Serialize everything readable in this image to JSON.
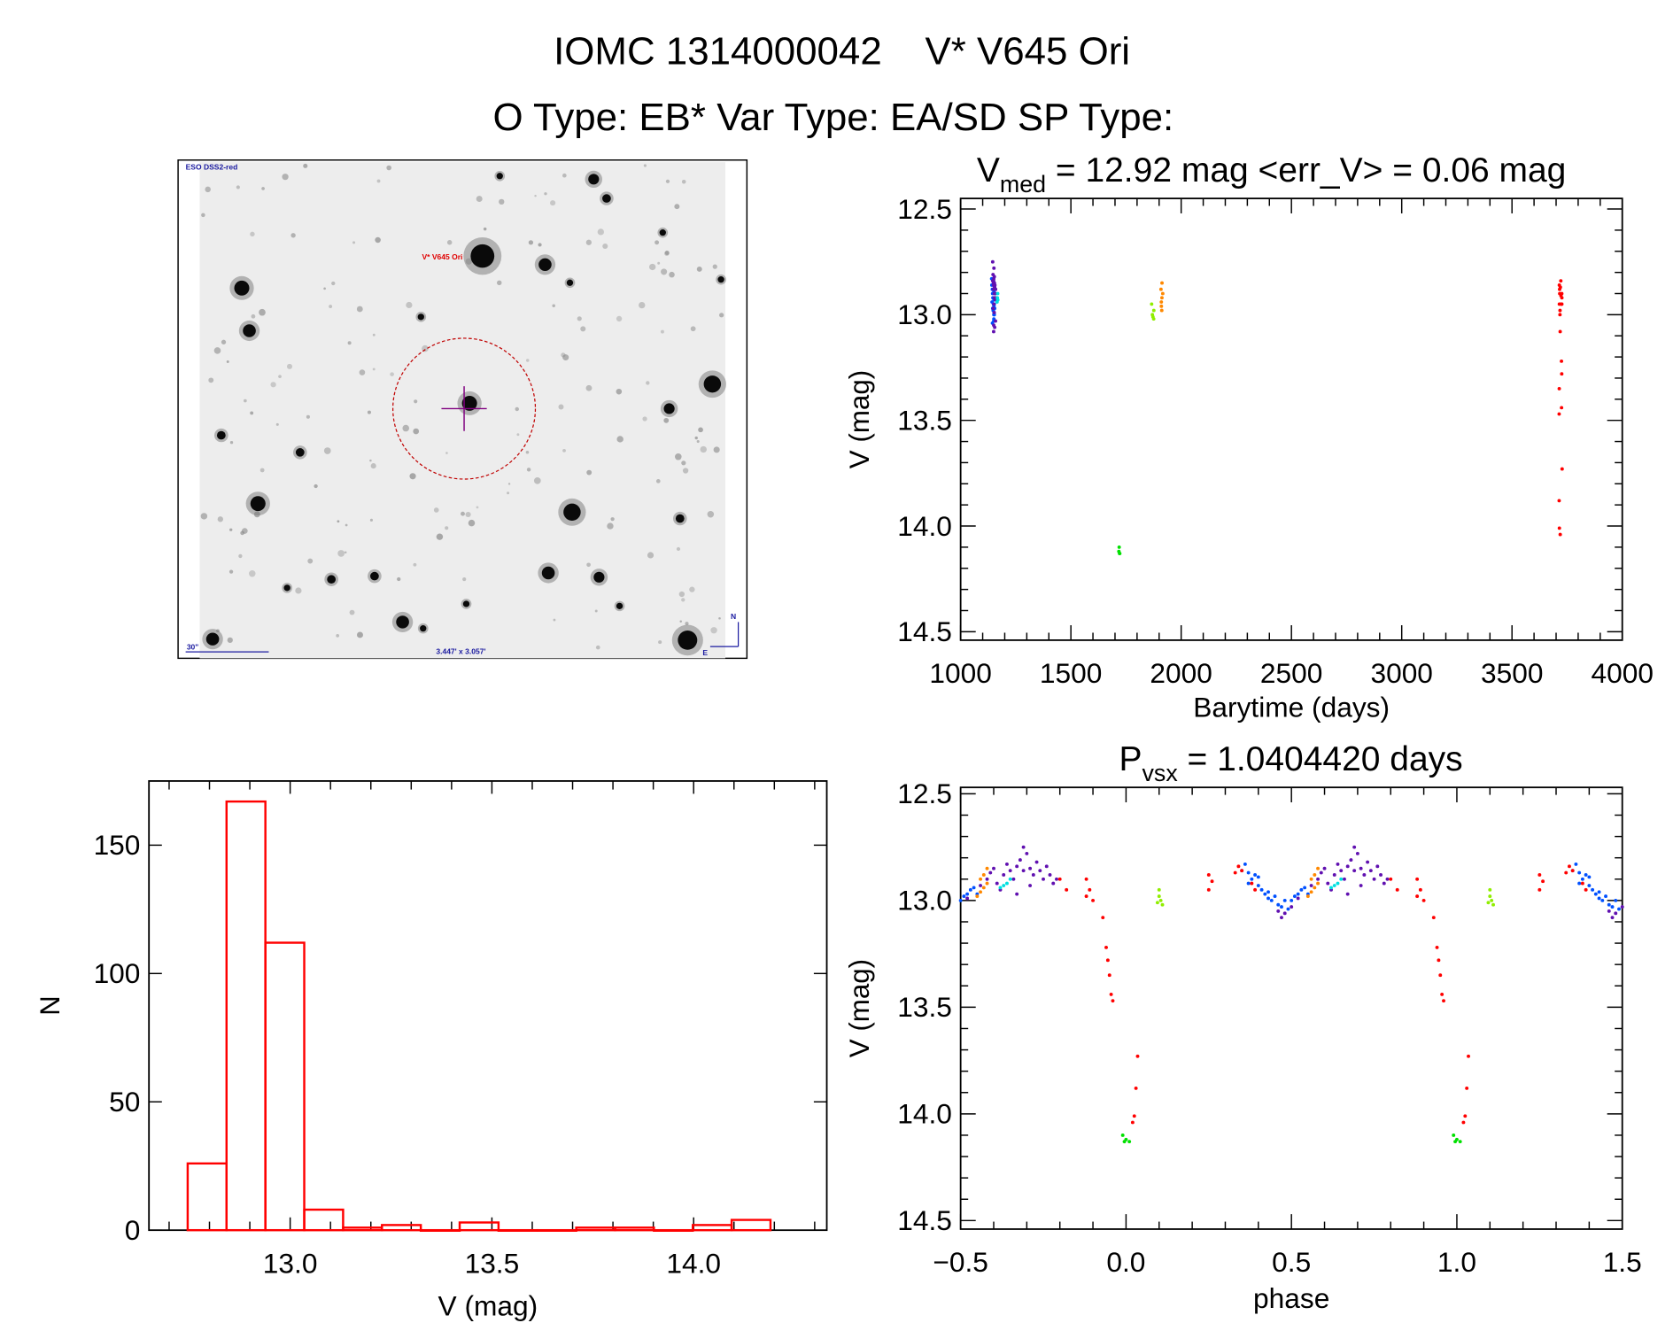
{
  "title": {
    "line1": "IOMC 1314000042    V* V645 Ori",
    "line2": "O Type: EB*  Var Type: EA/SD  SP Type:"
  },
  "finder_image": {
    "survey_label": "ESO DSS2-red",
    "target_label": "V* V645 Ori",
    "scale_label": "30\"",
    "fov_label": "3.447' x 3.057'",
    "north_label": "N",
    "east_label": "E",
    "marker_color": "#c00000",
    "crosshair_color": "#800080"
  },
  "chart_data": [
    {
      "id": "lightcurve",
      "type": "scatter",
      "title": {
        "main": "V",
        "sub": "med",
        "rest": " = 12.92 mag <err_V> = 0.06 mag"
      },
      "xlabel": "Barytime (days)",
      "ylabel": "V (mag)",
      "xlim": [
        1000,
        4000
      ],
      "ylim": [
        14.5,
        12.5
      ],
      "y_inverted": true,
      "xticks": [
        "1000",
        "1500",
        "2000",
        "2500",
        "3000",
        "3500",
        "4000"
      ],
      "yticks": [
        "12.5",
        "13.0",
        "13.5",
        "14.0",
        "14.5"
      ],
      "note": "points plotted from the observation groups below at each group's epoch"
    },
    {
      "id": "histogram",
      "type": "bar",
      "xlabel": "V (mag)",
      "ylabel": "N",
      "xlim": [
        12.65,
        14.33
      ],
      "ylim": [
        0,
        175
      ],
      "xticks": [
        "13.0",
        "13.5",
        "14.0"
      ],
      "yticks": [
        "0",
        "50",
        "100",
        "150"
      ],
      "bin_start": 12.746,
      "bin_width": 0.0963,
      "counts": [
        26,
        167,
        112,
        8,
        1,
        2,
        0,
        3,
        0,
        0,
        1,
        1,
        0,
        2,
        4
      ],
      "color": "#ff0000"
    },
    {
      "id": "phased",
      "type": "scatter",
      "title": {
        "main": "P",
        "sub": "vsx",
        "rest": " = 1.0404420 days"
      },
      "xlabel": "phase",
      "ylabel": "V (mag)",
      "xlim": [
        -0.5,
        1.5
      ],
      "ylim": [
        14.5,
        12.5
      ],
      "y_inverted": true,
      "xticks": [
        "−0.5",
        "0.0",
        "0.5",
        "1.0",
        "1.5"
      ],
      "yticks": [
        "12.5",
        "13.0",
        "13.5",
        "14.0",
        "14.5"
      ],
      "phase_repeated": true
    }
  ],
  "observation_groups": [
    {
      "color": "#0050ff",
      "time_days": 1148,
      "points": [
        [
          0.36,
          12.83
        ],
        [
          0.37,
          12.87
        ],
        [
          0.38,
          12.9
        ],
        [
          0.39,
          12.88
        ],
        [
          0.4,
          12.93
        ],
        [
          0.41,
          12.95
        ],
        [
          0.42,
          12.97
        ],
        [
          0.43,
          12.99
        ],
        [
          0.44,
          13.0
        ],
        [
          0.45,
          12.98
        ],
        [
          0.46,
          13.02
        ],
        [
          0.47,
          13.03
        ],
        [
          0.48,
          13.0
        ],
        [
          0.49,
          13.04
        ],
        [
          0.37,
          12.92
        ],
        [
          0.4,
          12.89
        ],
        [
          0.43,
          12.96
        ],
        [
          0.35,
          12.86
        ],
        [
          -0.5,
          13.0
        ],
        [
          -0.49,
          12.98
        ],
        [
          -0.48,
          12.97
        ],
        [
          -0.47,
          12.95
        ],
        [
          -0.46,
          12.94
        ],
        [
          -0.45,
          12.97
        ]
      ]
    },
    {
      "color": "#6010b0",
      "time_days": 1152,
      "points": [
        [
          -0.44,
          12.93
        ],
        [
          -0.42,
          12.9
        ],
        [
          -0.41,
          12.87
        ],
        [
          -0.4,
          12.85
        ],
        [
          -0.39,
          12.92
        ],
        [
          -0.37,
          12.88
        ],
        [
          -0.36,
          12.83
        ],
        [
          -0.35,
          12.86
        ],
        [
          -0.34,
          12.9
        ],
        [
          -0.33,
          12.84
        ],
        [
          -0.32,
          12.81
        ],
        [
          -0.31,
          12.86
        ],
        [
          -0.3,
          12.78
        ],
        [
          -0.29,
          12.85
        ],
        [
          -0.28,
          12.88
        ],
        [
          -0.27,
          12.82
        ],
        [
          -0.26,
          12.86
        ],
        [
          -0.25,
          12.9
        ],
        [
          -0.24,
          12.84
        ],
        [
          -0.23,
          12.88
        ],
        [
          -0.22,
          12.92
        ],
        [
          -0.21,
          12.9
        ],
        [
          -0.38,
          12.95
        ],
        [
          -0.33,
          12.97
        ],
        [
          -0.29,
          12.93
        ],
        [
          -0.31,
          12.75
        ],
        [
          0.46,
          13.05
        ],
        [
          0.47,
          13.08
        ],
        [
          0.48,
          13.06
        ],
        [
          0.5,
          13.03
        ],
        [
          -0.48,
          12.99
        ]
      ]
    },
    {
      "color": "#00e0e0",
      "time_days": 1170,
      "points": [
        [
          -0.38,
          12.94
        ],
        [
          -0.37,
          12.93
        ],
        [
          -0.36,
          12.92
        ],
        [
          -0.35,
          12.9
        ]
      ]
    },
    {
      "color": "#00e000",
      "time_days": 1720,
      "points": [
        [
          -0.01,
          14.1
        ],
        [
          0.0,
          14.12
        ],
        [
          -0.005,
          14.13
        ],
        [
          0.01,
          14.13
        ]
      ]
    },
    {
      "color": "#90ee00",
      "time_days": 1870,
      "points": [
        [
          0.1,
          12.95
        ],
        [
          0.1,
          12.98
        ],
        [
          0.105,
          13.0
        ],
        [
          0.11,
          13.02
        ],
        [
          0.095,
          13.01
        ]
      ]
    },
    {
      "color": "#ff8800",
      "time_days": 1910,
      "points": [
        [
          -0.45,
          12.98
        ],
        [
          -0.44,
          12.96
        ],
        [
          -0.43,
          12.94
        ],
        [
          -0.42,
          12.92
        ],
        [
          -0.44,
          12.9
        ],
        [
          -0.43,
          12.88
        ],
        [
          -0.42,
          12.85
        ]
      ]
    },
    {
      "color": "#ff0000",
      "time_days": 3720,
      "points": [
        [
          -0.12,
          12.9
        ],
        [
          -0.11,
          12.95
        ],
        [
          -0.12,
          12.98
        ],
        [
          -0.1,
          13.0
        ],
        [
          -0.07,
          13.08
        ],
        [
          -0.06,
          13.22
        ],
        [
          -0.055,
          13.28
        ],
        [
          -0.05,
          13.35
        ],
        [
          -0.045,
          13.44
        ],
        [
          -0.04,
          13.47
        ],
        [
          0.02,
          14.04
        ],
        [
          0.025,
          14.01
        ],
        [
          0.03,
          13.88
        ],
        [
          0.035,
          13.73
        ],
        [
          0.25,
          12.88
        ],
        [
          0.26,
          12.91
        ],
        [
          0.25,
          12.95
        ],
        [
          0.33,
          12.87
        ],
        [
          0.34,
          12.84
        ],
        [
          0.35,
          12.86
        ],
        [
          0.38,
          12.92
        ],
        [
          0.39,
          12.95
        ],
        [
          -0.2,
          12.9
        ],
        [
          -0.18,
          12.95
        ]
      ]
    }
  ]
}
